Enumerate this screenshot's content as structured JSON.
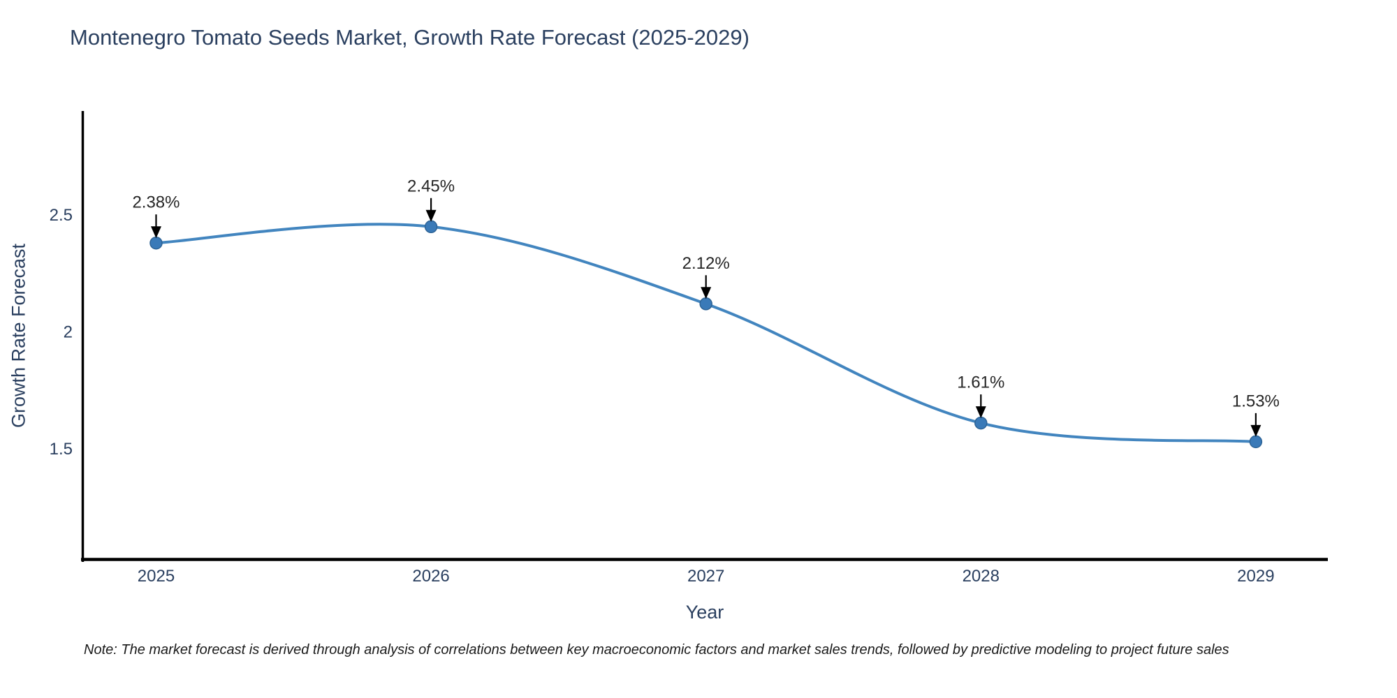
{
  "chart_data": {
    "type": "line",
    "title": "Montenegro Tomato Seeds Market, Growth Rate Forecast (2025-2029)",
    "xlabel": "Year",
    "ylabel": "Growth Rate Forecast",
    "x": [
      2025,
      2026,
      2027,
      2028,
      2029
    ],
    "series": [
      {
        "name": "Growth Rate Forecast",
        "values": [
          2.38,
          2.45,
          2.12,
          1.61,
          1.53
        ]
      }
    ],
    "point_labels": [
      "2.38%",
      "2.45%",
      "2.12%",
      "1.61%",
      "1.53%"
    ],
    "line_shape": "spline",
    "grid": false,
    "legend_position": "none",
    "xlim": [
      2024.732,
      2029.262
    ],
    "ylim": [
      1.022,
      2.945
    ],
    "yticks": [
      2.5,
      2,
      1.5
    ],
    "ytick_labels": [
      "2.5",
      "2",
      "1.5"
    ],
    "xtick_labels": [
      "2025",
      "2026",
      "2027",
      "2028",
      "2029"
    ],
    "colors": {
      "line": "#4285bf",
      "marker": "#3a7ab8",
      "marker_edge": "#2d6396",
      "axis": "#000000",
      "title_text": "#2a3f5f",
      "tick_text": "#2a3f5f",
      "annotation_text": "#262626",
      "annotation_arrow": "#000000",
      "background": "#ffffff"
    }
  },
  "note": {
    "text": "Note: The market forecast is derived through analysis of correlations between key macroeconomic factors and market sales trends, followed by predictive modeling to project future sales"
  }
}
